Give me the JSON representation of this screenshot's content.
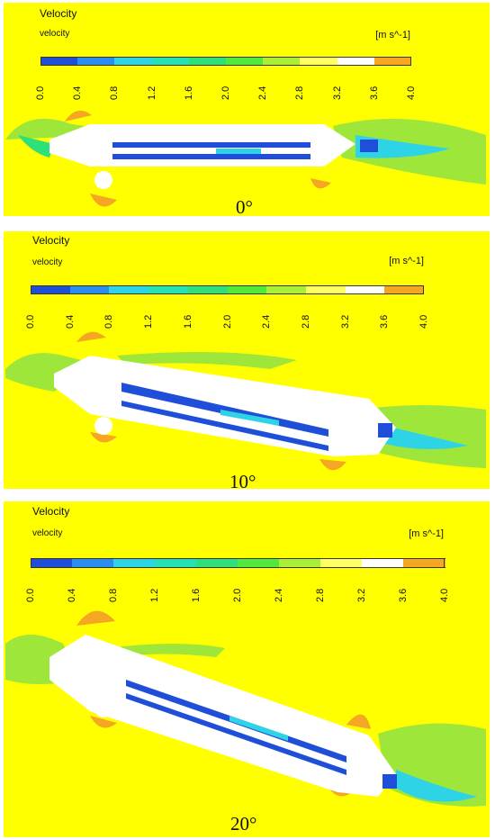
{
  "panels": [
    {
      "title": "Velocity",
      "subtitle": "velocity",
      "unit": "[m s^-1]",
      "angle_label": "0°",
      "angle_deg": 0
    },
    {
      "title": "Velocity",
      "subtitle": "velocity",
      "unit": "[m s^-1]",
      "angle_label": "10°",
      "angle_deg": 10
    },
    {
      "title": "Velocity",
      "subtitle": "velocity",
      "unit": "[m s^-1]",
      "angle_label": "20°",
      "angle_deg": 20
    }
  ],
  "colorbar": {
    "ticks": [
      "0.0",
      "0.4",
      "0.8",
      "1.2",
      "1.6",
      "2.0",
      "2.4",
      "2.8",
      "3.2",
      "3.6",
      "4.0"
    ],
    "colors": [
      "#1f4fd8",
      "#2b8df0",
      "#2fd3e6",
      "#27e0b4",
      "#2fe07a",
      "#52e93e",
      "#a8ef35",
      "#ffff66",
      "#ffffff",
      "#f5a623",
      "#ee3b24"
    ]
  }
}
